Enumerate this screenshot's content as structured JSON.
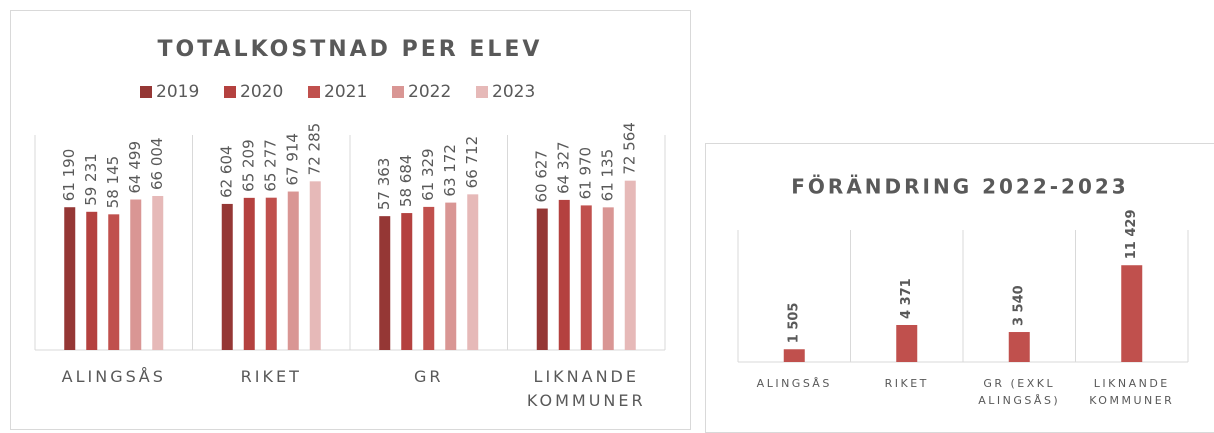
{
  "chart_data": [
    {
      "type": "bar",
      "title": "TOTALKOSTNAD PER ELEV",
      "categories": [
        "ALINGSÅS",
        "RIKET",
        "GR",
        "LIKNANDE KOMMUNER"
      ],
      "series": [
        {
          "name": "2019",
          "color": "#953735",
          "values": [
            61190,
            62604,
            57363,
            60627
          ],
          "value_labels": [
            "61 190",
            "62 604",
            "57 363",
            "60 627"
          ]
        },
        {
          "name": "2020",
          "color": "#b4413f",
          "values": [
            59231,
            65209,
            58684,
            64327
          ],
          "value_labels": [
            "59 231",
            "65 209",
            "58 684",
            "64 327"
          ]
        },
        {
          "name": "2021",
          "color": "#c0504d",
          "values": [
            58145,
            65277,
            61329,
            61970
          ],
          "value_labels": [
            "58 145",
            "65 277",
            "61 329",
            "61 970"
          ]
        },
        {
          "name": "2022",
          "color": "#d99694",
          "values": [
            64499,
            67914,
            63172,
            61135
          ],
          "value_labels": [
            "64 499",
            "67 914",
            "63 172",
            "61 135"
          ]
        },
        {
          "name": "2023",
          "color": "#e6b9b8",
          "values": [
            66004,
            72285,
            66712,
            72564
          ],
          "value_labels": [
            "66 004",
            "72 285",
            "66 712",
            "72 564"
          ]
        }
      ],
      "ylim": [
        0,
        90000
      ],
      "legend": "top"
    },
    {
      "type": "bar",
      "title": "FÖRÄNDRING 2022-2023",
      "categories": [
        "ALINGSÅS",
        "RIKET",
        "GR (EXKL ALINGSÅS)",
        "LIKNANDE KOMMUNER"
      ],
      "values": [
        1505,
        4371,
        3540,
        11429
      ],
      "value_labels": [
        "1 505",
        "4 371",
        "3 540",
        "11 429"
      ],
      "color": "#c0504d",
      "ylim": [
        0,
        15000
      ]
    }
  ]
}
